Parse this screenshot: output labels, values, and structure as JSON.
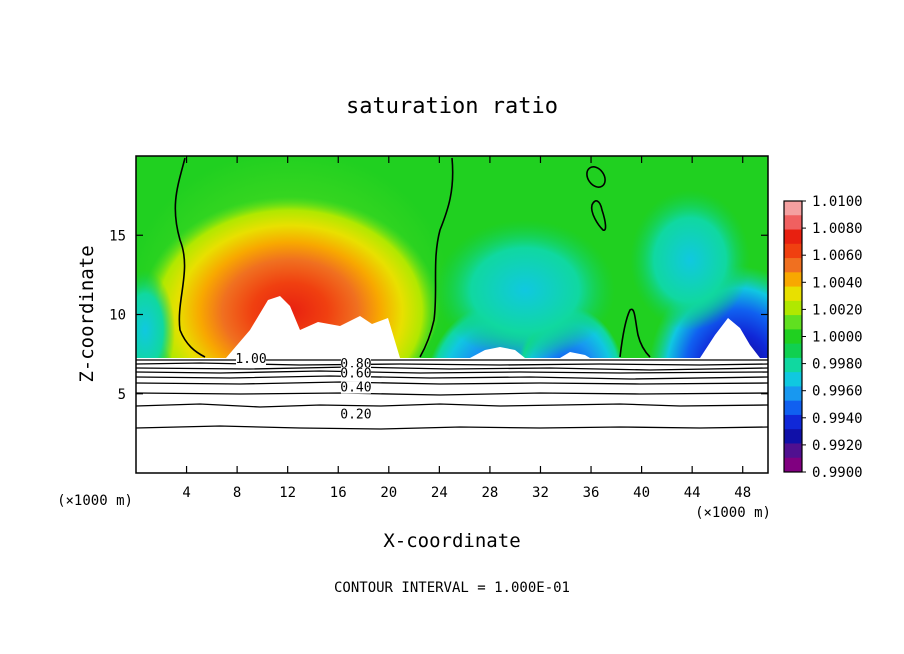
{
  "chart_data": {
    "type": "heatmap",
    "title": "saturation ratio",
    "xlabel": "X-coordinate",
    "ylabel": "Z-coordinate",
    "x_unit_label": "(×1000 m)",
    "y_unit_label": "(×1000 m)",
    "xlim": [
      0,
      50
    ],
    "ylim": [
      0,
      20
    ],
    "x_ticks": [
      4,
      8,
      12,
      16,
      20,
      24,
      28,
      32,
      36,
      40,
      44,
      48
    ],
    "y_ticks": [
      5,
      10,
      15
    ],
    "footer": "CONTOUR INTERVAL = 1.000E-01",
    "colorbar": {
      "min": 0.99,
      "max": 1.01,
      "labels": [
        "1.0100",
        "1.0080",
        "1.0060",
        "1.0040",
        "1.0020",
        "1.0000",
        "0.9980",
        "0.9960",
        "0.9940",
        "0.9920",
        "0.9900"
      ],
      "colors": [
        "#f4a0a0",
        "#f06060",
        "#e82010",
        "#f04010",
        "#f07020",
        "#f8a800",
        "#e8e000",
        "#b0e800",
        "#60e020",
        "#20d020",
        "#10d050",
        "#10d8a0",
        "#10c8e0",
        "#1898f0",
        "#1060f0",
        "#1028d8",
        "#1010a8",
        "#501090",
        "#800080"
      ]
    },
    "contour_labels": [
      {
        "text": "1.00",
        "x": 9.1,
        "z": 7.0
      },
      {
        "text": "0.80",
        "x": 17.4,
        "z": 6.7
      },
      {
        "text": "0.60",
        "x": 17.4,
        "z": 6.1
      },
      {
        "text": "0.40",
        "x": 17.4,
        "z": 5.2
      },
      {
        "text": "0.20",
        "x": 17.4,
        "z": 3.5
      }
    ],
    "contour_levels": [
      0.2,
      0.4,
      0.6,
      0.8,
      1.0
    ]
  }
}
